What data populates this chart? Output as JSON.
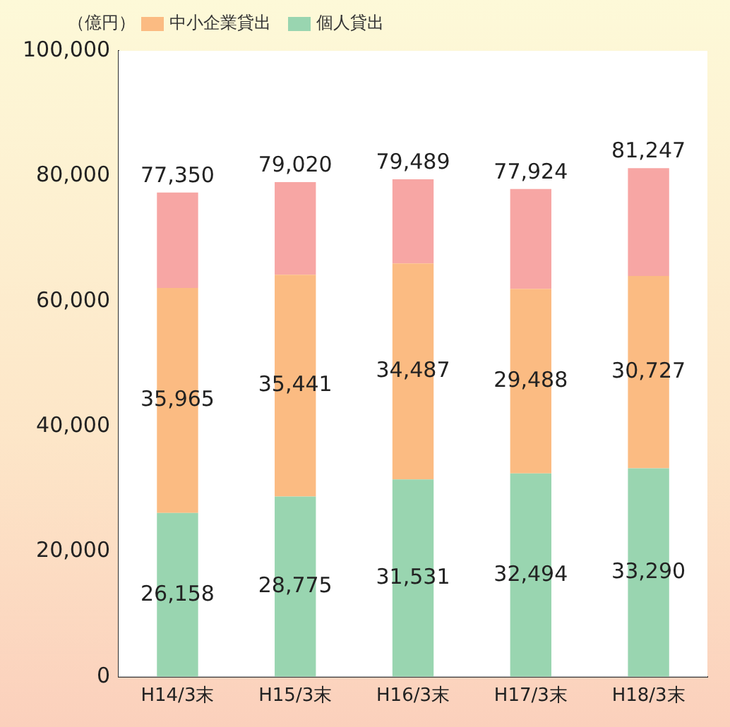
{
  "chart_data": {
    "type": "bar",
    "stacked": true,
    "ylabel": "（億円）",
    "categories": [
      "H14/3末",
      "H15/3末",
      "H16/3末",
      "H17/3末",
      "H18/3末"
    ],
    "series": [
      {
        "name": "個人貸出",
        "color": "#99d5b0",
        "values": [
          26158,
          28775,
          31531,
          32494,
          33290
        ],
        "value_labels": [
          "26,158",
          "28,775",
          "31,531",
          "32,494",
          "33,290"
        ]
      },
      {
        "name": "中小企業貸出",
        "color": "#fbbb82",
        "values": [
          35965,
          35441,
          34487,
          29488,
          30727
        ],
        "value_labels": [
          "35,965",
          "35,441",
          "34,487",
          "29,488",
          "30,727"
        ]
      },
      {
        "color": "#f7a6a4",
        "values": [
          15227,
          14804,
          13471,
          15942,
          17230
        ]
      }
    ],
    "totals": [
      "77,350",
      "79,020",
      "79,489",
      "77,924",
      "81,247"
    ],
    "ylim": [
      0,
      100000
    ],
    "yticks": [
      {
        "value": 0,
        "label": "0"
      },
      {
        "value": 20000,
        "label": "20,000"
      },
      {
        "value": 40000,
        "label": "40,000"
      },
      {
        "value": 60000,
        "label": "60,000"
      },
      {
        "value": 80000,
        "label": "80,000"
      },
      {
        "value": 100000,
        "label": "100,000"
      }
    ],
    "grid": false,
    "legend": "top left"
  }
}
